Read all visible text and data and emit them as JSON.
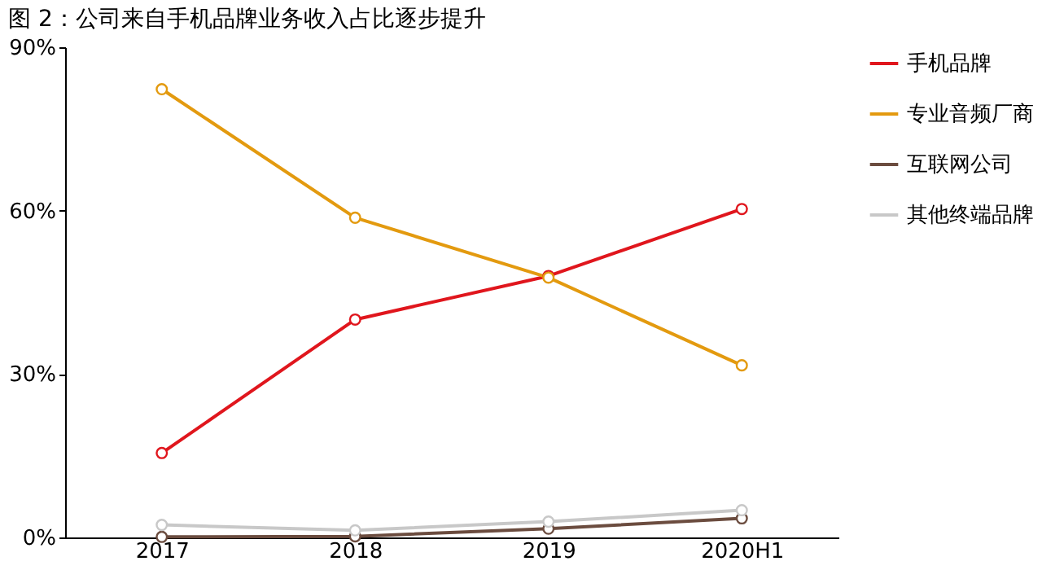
{
  "chart_data": {
    "type": "line",
    "title": "图 2：公司来自手机品牌业务收入占比逐步提升",
    "categories": [
      "2017",
      "2018",
      "2019",
      "2020H1"
    ],
    "series": [
      {
        "name": "手机品牌",
        "color": "#e0161d",
        "values": [
          15.5,
          40,
          48,
          60.3
        ]
      },
      {
        "name": "专业音频厂商",
        "color": "#e39a0f",
        "values": [
          82.3,
          58.7,
          47.7,
          31.6
        ]
      },
      {
        "name": "互联网公司",
        "color": "#6b4c3f",
        "values": [
          0.1,
          0.2,
          1.6,
          3.5
        ]
      },
      {
        "name": "其他终端品牌",
        "color": "#c8c8c8",
        "values": [
          2.3,
          1.3,
          2.9,
          5
        ]
      }
    ],
    "ylim": [
      0,
      90
    ],
    "yticks": [
      {
        "value": 0,
        "label": "0%"
      },
      {
        "value": 30,
        "label": "30%"
      },
      {
        "value": 60,
        "label": "60%"
      },
      {
        "value": 90,
        "label": "90%"
      }
    ],
    "grid": false,
    "legend": "right",
    "marker": "circle",
    "line_style": "solid"
  }
}
